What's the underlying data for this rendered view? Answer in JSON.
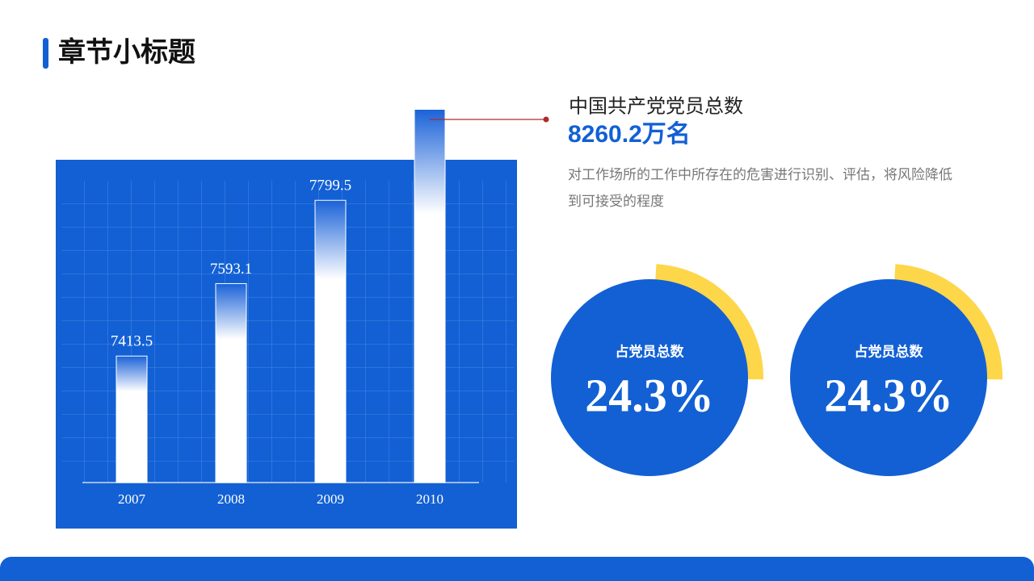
{
  "header": {
    "title": "章节小标题"
  },
  "chart_data": {
    "type": "bar",
    "categories": [
      "2007",
      "2008",
      "2009",
      "2010"
    ],
    "values": [
      7413.5,
      7593.1,
      7799.5,
      8025
    ],
    "value_labels": [
      "7413.5",
      "7593.1",
      "7799.5",
      null
    ],
    "ylim": [
      7100,
      8050
    ],
    "color": "#1260d4"
  },
  "info": {
    "heading": "中国共产党党员总数",
    "highlight": "8260.2万名",
    "description": "对工作场所的工作中所存在的危害进行识别、评估，将风险降低到可接受的程度"
  },
  "stats": [
    {
      "label": "占党员总数",
      "value": 24.3,
      "value_label": "24.3%"
    },
    {
      "label": "占党员总数",
      "value": 24.3,
      "value_label": "24.3%"
    }
  ]
}
